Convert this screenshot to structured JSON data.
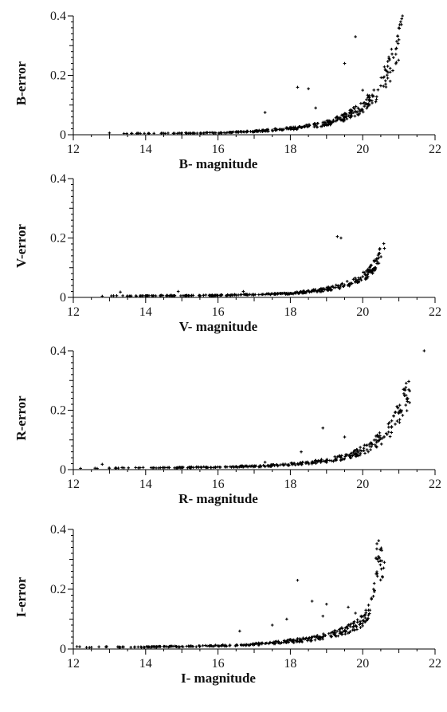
{
  "chart_data": [
    {
      "type": "scatter",
      "xlabel": "B- magnitude",
      "ylabel": "B-error",
      "xlim": [
        12,
        22
      ],
      "ylim": [
        0,
        0.4
      ],
      "xticks": [
        12,
        14,
        16,
        18,
        20,
        22
      ],
      "yticks": [
        0,
        0.2,
        0.4
      ],
      "tick_format": {
        "0": "0",
        "0.2": "0.2",
        "0.4": "0.4"
      },
      "grid": false,
      "series": [
        {
          "points": [
            [
              13.0,
              0.006
            ],
            [
              13.4,
              0.004
            ],
            [
              13.8,
              0.005
            ],
            [
              14.1,
              0.004
            ],
            [
              14.5,
              0.005
            ],
            [
              14.8,
              0.005
            ],
            [
              15.0,
              0.006
            ],
            [
              15.3,
              0.005
            ],
            [
              15.6,
              0.006
            ],
            [
              15.9,
              0.007
            ],
            [
              16.1,
              0.006
            ],
            [
              16.3,
              0.008
            ],
            [
              16.5,
              0.009
            ],
            [
              16.7,
              0.01
            ],
            [
              16.9,
              0.011
            ],
            [
              17.1,
              0.012
            ],
            [
              17.3,
              0.014
            ],
            [
              17.5,
              0.016
            ],
            [
              17.7,
              0.018
            ],
            [
              17.9,
              0.02
            ],
            [
              18.1,
              0.022
            ],
            [
              18.3,
              0.025
            ],
            [
              18.5,
              0.028
            ],
            [
              18.7,
              0.032
            ],
            [
              18.9,
              0.036
            ],
            [
              19.1,
              0.042
            ],
            [
              19.3,
              0.05
            ],
            [
              19.5,
              0.06
            ],
            [
              19.7,
              0.072
            ],
            [
              19.9,
              0.086
            ],
            [
              20.1,
              0.105
            ],
            [
              20.3,
              0.13
            ],
            [
              20.5,
              0.165
            ],
            [
              20.7,
              0.21
            ],
            [
              20.85,
              0.26
            ],
            [
              21.0,
              0.32
            ],
            [
              21.05,
              0.38
            ],
            [
              21.1,
              0.4
            ]
          ]
        },
        {
          "points": [
            [
              17.3,
              0.075
            ],
            [
              18.2,
              0.16
            ],
            [
              18.5,
              0.155
            ],
            [
              19.5,
              0.24
            ],
            [
              19.8,
              0.33
            ],
            [
              20.0,
              0.15
            ],
            [
              18.7,
              0.09
            ]
          ]
        }
      ]
    },
    {
      "type": "scatter",
      "xlabel": "V- magnitude",
      "ylabel": "V-error",
      "xlim": [
        12,
        22
      ],
      "ylim": [
        0,
        0.4
      ],
      "xticks": [
        12,
        14,
        16,
        18,
        20,
        22
      ],
      "yticks": [
        0,
        0.2,
        0.4
      ],
      "grid": false,
      "series": [
        {
          "points": [
            [
              12.8,
              0.004
            ],
            [
              13.2,
              0.006
            ],
            [
              13.6,
              0.005
            ],
            [
              14.0,
              0.005
            ],
            [
              14.4,
              0.006
            ],
            [
              14.8,
              0.006
            ],
            [
              15.2,
              0.006
            ],
            [
              15.6,
              0.007
            ],
            [
              16.0,
              0.007
            ],
            [
              16.4,
              0.008
            ],
            [
              16.8,
              0.009
            ],
            [
              17.2,
              0.01
            ],
            [
              17.6,
              0.012
            ],
            [
              18.0,
              0.014
            ],
            [
              18.3,
              0.017
            ],
            [
              18.6,
              0.021
            ],
            [
              18.9,
              0.026
            ],
            [
              19.2,
              0.033
            ],
            [
              19.5,
              0.042
            ],
            [
              19.8,
              0.055
            ],
            [
              20.0,
              0.07
            ],
            [
              20.2,
              0.09
            ],
            [
              20.4,
              0.12
            ],
            [
              20.6,
              0.165
            ]
          ]
        },
        {
          "points": [
            [
              19.3,
              0.205
            ],
            [
              19.4,
              0.2
            ],
            [
              13.3,
              0.018
            ],
            [
              14.9,
              0.02
            ],
            [
              16.7,
              0.02
            ]
          ]
        }
      ]
    },
    {
      "type": "scatter",
      "xlabel": "R- magnitude",
      "ylabel": "R-error",
      "xlim": [
        12,
        22
      ],
      "ylim": [
        0,
        0.4
      ],
      "xticks": [
        12,
        14,
        16,
        18,
        20,
        22
      ],
      "yticks": [
        0,
        0.2,
        0.4
      ],
      "grid": false,
      "series": [
        {
          "points": [
            [
              12.2,
              0.004
            ],
            [
              12.6,
              0.005
            ],
            [
              13.0,
              0.005
            ],
            [
              13.4,
              0.006
            ],
            [
              13.8,
              0.006
            ],
            [
              14.2,
              0.006
            ],
            [
              14.6,
              0.007
            ],
            [
              15.0,
              0.007
            ],
            [
              15.4,
              0.008
            ],
            [
              15.8,
              0.008
            ],
            [
              16.2,
              0.009
            ],
            [
              16.6,
              0.01
            ],
            [
              17.0,
              0.011
            ],
            [
              17.4,
              0.013
            ],
            [
              17.8,
              0.016
            ],
            [
              18.2,
              0.02
            ],
            [
              18.6,
              0.025
            ],
            [
              19.0,
              0.031
            ],
            [
              19.4,
              0.04
            ],
            [
              19.8,
              0.055
            ],
            [
              20.2,
              0.078
            ],
            [
              20.5,
              0.105
            ],
            [
              20.8,
              0.145
            ],
            [
              21.0,
              0.19
            ],
            [
              21.2,
              0.25
            ],
            [
              21.3,
              0.265
            ]
          ]
        },
        {
          "points": [
            [
              21.7,
              0.4
            ],
            [
              18.9,
              0.14
            ],
            [
              19.5,
              0.11
            ],
            [
              18.3,
              0.06
            ],
            [
              12.8,
              0.018
            ],
            [
              17.3,
              0.025
            ]
          ]
        }
      ]
    },
    {
      "type": "scatter",
      "xlabel": "I- magnitude",
      "ylabel": "I-error",
      "xlim": [
        12,
        22
      ],
      "ylim": [
        0,
        0.4
      ],
      "xticks": [
        12,
        14,
        16,
        18,
        20,
        22
      ],
      "yticks": [
        0,
        0.2,
        0.4
      ],
      "grid": false,
      "series": [
        {
          "points": [
            [
              12.1,
              0.008
            ],
            [
              12.5,
              0.006
            ],
            [
              12.9,
              0.007
            ],
            [
              13.3,
              0.006
            ],
            [
              13.7,
              0.007
            ],
            [
              14.1,
              0.007
            ],
            [
              14.5,
              0.008
            ],
            [
              14.9,
              0.008
            ],
            [
              15.3,
              0.009
            ],
            [
              15.7,
              0.01
            ],
            [
              16.1,
              0.011
            ],
            [
              16.5,
              0.013
            ],
            [
              16.9,
              0.015
            ],
            [
              17.3,
              0.018
            ],
            [
              17.7,
              0.022
            ],
            [
              18.1,
              0.027
            ],
            [
              18.5,
              0.033
            ],
            [
              18.9,
              0.041
            ],
            [
              19.2,
              0.05
            ],
            [
              19.5,
              0.062
            ],
            [
              19.8,
              0.078
            ],
            [
              20.0,
              0.095
            ],
            [
              20.2,
              0.13
            ],
            [
              20.3,
              0.2
            ],
            [
              20.4,
              0.3
            ],
            [
              20.6,
              0.29
            ]
          ]
        },
        {
          "points": [
            [
              18.2,
              0.23
            ],
            [
              18.6,
              0.16
            ],
            [
              19.0,
              0.15
            ],
            [
              18.9,
              0.11
            ],
            [
              17.5,
              0.08
            ],
            [
              16.6,
              0.06
            ],
            [
              17.9,
              0.1
            ],
            [
              19.6,
              0.14
            ],
            [
              19.8,
              0.12
            ]
          ]
        }
      ]
    }
  ]
}
